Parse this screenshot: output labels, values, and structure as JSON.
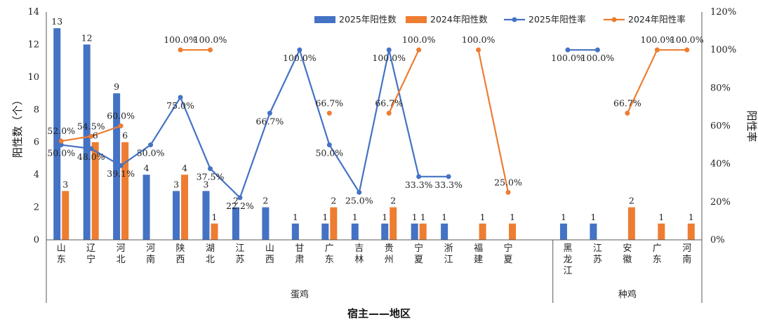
{
  "chart_data": {
    "type": "bar+line",
    "xlabel": "宿主——地区",
    "ylabel": "阳性数（个）",
    "y2label": "阳性率",
    "ylim": [
      0,
      14
    ],
    "yticks": [
      "0",
      "2",
      "4",
      "6",
      "8",
      "10",
      "12",
      "14"
    ],
    "y2lim": [
      0,
      120
    ],
    "y2ticks": [
      "0%",
      "20%",
      "40%",
      "60%",
      "80%",
      "100%",
      "120%"
    ],
    "legend_position": "top-right",
    "groups": [
      {
        "label": "蛋鸡",
        "start": 0,
        "end": 15
      },
      {
        "label": "种鸡",
        "start": 16,
        "end": 20
      }
    ],
    "categories": [
      "山东",
      "辽宁",
      "河北",
      "河南",
      "陕西",
      "湖北",
      "江苏",
      "山西",
      "甘肃",
      "广东",
      "吉林",
      "贵州",
      "宁夏",
      "浙江",
      "福建",
      "宁夏",
      "",
      "黑龙江",
      "江苏",
      "安徽",
      "广东",
      "河南"
    ],
    "series": [
      {
        "name": "2025年阳性数",
        "kind": "bar",
        "color": "#4472C4",
        "values": [
          13,
          12,
          9,
          4,
          3,
          3,
          2,
          2,
          1,
          1,
          1,
          1,
          1,
          1,
          null,
          null,
          null,
          1,
          1,
          null,
          null,
          null
        ]
      },
      {
        "name": "2024年阳性数",
        "kind": "bar",
        "color": "#ED7D31",
        "values": [
          3,
          6,
          6,
          null,
          4,
          1,
          null,
          null,
          null,
          2,
          null,
          2,
          1,
          null,
          1,
          1,
          null,
          null,
          null,
          2,
          1,
          1
        ]
      },
      {
        "name": "2025年阳性率",
        "kind": "line",
        "color": "#4472C4",
        "values": [
          50.0,
          48.0,
          39.1,
          50.0,
          75.0,
          37.5,
          22.2,
          66.7,
          100.0,
          50.0,
          25.0,
          100.0,
          33.3,
          33.3,
          null,
          null,
          null,
          100.0,
          100.0,
          null,
          null,
          null
        ],
        "labels": [
          "50.0%",
          "48.0%",
          "39.1%",
          "50.0%",
          "75.0%",
          "37.5%",
          "22.2%",
          "66.7%",
          "100.0%",
          "50.0%",
          "25.0%",
          "100.0%",
          "33.3%",
          "33.3%",
          null,
          null,
          null,
          "100.0%",
          "100.0%",
          null,
          null,
          null
        ]
      },
      {
        "name": "2024年阳性率",
        "kind": "line",
        "color": "#ED7D31",
        "values": [
          52.0,
          54.5,
          60.0,
          null,
          100.0,
          100.0,
          null,
          null,
          null,
          66.7,
          null,
          66.7,
          100.0,
          null,
          100.0,
          25.0,
          null,
          null,
          null,
          66.7,
          100.0,
          100.0
        ],
        "labels": [
          "52.0%",
          "54.5%",
          "60.0%",
          null,
          "100.0%",
          "100.0%",
          null,
          null,
          null,
          "66.7%",
          null,
          "66.7%",
          "100.0%",
          null,
          "100.0%",
          "25.0%",
          null,
          null,
          null,
          "66.7%",
          "100.0%",
          "100.0%"
        ]
      }
    ]
  }
}
